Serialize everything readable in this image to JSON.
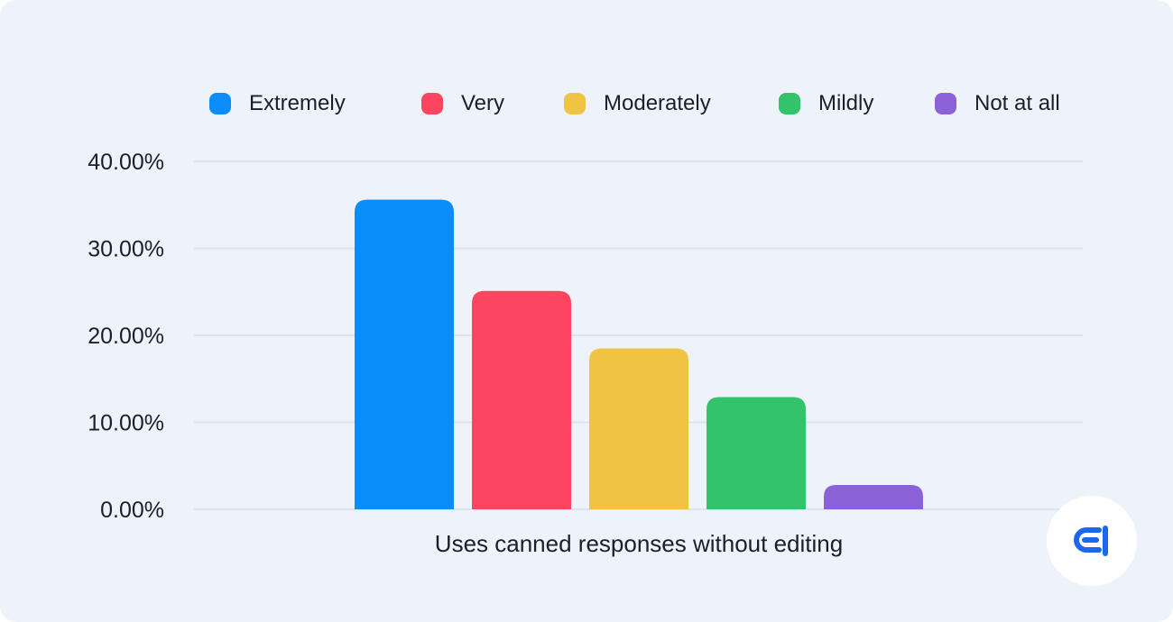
{
  "colors": {
    "background": "#eef3fa",
    "grid": "#dbe4ef",
    "text": "#1b1f2c",
    "brand": "#1c66f0"
  },
  "logo": {
    "icon": "brand-logo-icon"
  },
  "chart_data": {
    "type": "bar",
    "categories": [
      "Uses canned responses without editing"
    ],
    "xlabel": "Uses canned responses without editing",
    "ylabel": "",
    "ylim": [
      0,
      40
    ],
    "yticks": [
      0,
      10,
      20,
      30,
      40
    ],
    "ytick_labels": [
      "0.00%",
      "10.00%",
      "20.00%",
      "30.00%",
      "40.00%"
    ],
    "grid": true,
    "legend_position": "top",
    "series": [
      {
        "name": "Extremely",
        "color": "#0a8cfb",
        "values": [
          35.6
        ]
      },
      {
        "name": "Very",
        "color": "#fd4460",
        "values": [
          25.1
        ]
      },
      {
        "name": "Moderately",
        "color": "#f1c343",
        "values": [
          18.5
        ]
      },
      {
        "name": "Mildly",
        "color": "#33c36a",
        "values": [
          12.9
        ]
      },
      {
        "name": "Not at all",
        "color": "#8c61d8",
        "values": [
          2.8
        ]
      }
    ]
  }
}
